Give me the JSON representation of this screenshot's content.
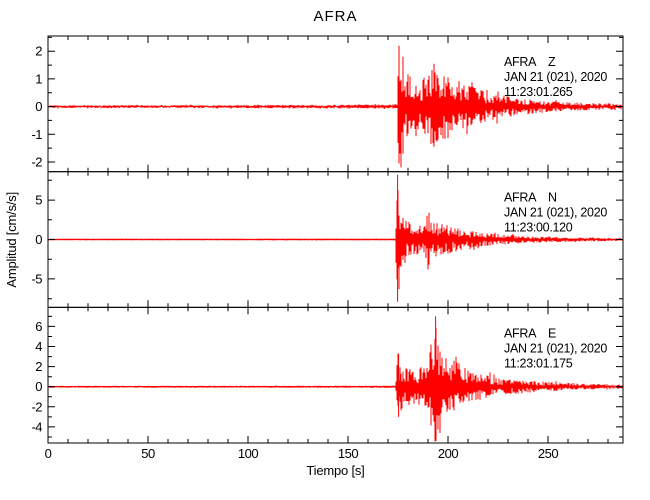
{
  "chart_data": {
    "type": "line",
    "title": "AFRA",
    "xlabel": "Tiempo [s]",
    "ylabel": "Amplitud [cm/s/s]",
    "xlim": [
      0,
      287.5
    ],
    "xticks_major": [
      0,
      50,
      100,
      150,
      200,
      250
    ],
    "xtick_minor_step": 10,
    "grid": false,
    "legend": "none",
    "trace_color": "#ff0000",
    "axis_color": "#000000",
    "background_color": "#ffffff",
    "panels": [
      {
        "station": "AFRA",
        "component": "Z",
        "date_line": "JAN 21 (021), 2020",
        "time_line": "11:23:01.265",
        "ylim": [
          -2.35,
          2.55
        ],
        "yticks_major": [
          -2,
          -1,
          0,
          1,
          2
        ],
        "ytick_minor_step": 0.5,
        "event_onset_s": 175,
        "noise_amplitude": 0.06,
        "envelope": [
          [
            0,
            0.05
          ],
          [
            100,
            0.06
          ],
          [
            160,
            0.07
          ],
          [
            172,
            0.08
          ],
          [
            174.5,
            0.1
          ],
          [
            175.5,
            2.2
          ],
          [
            177,
            1.7
          ],
          [
            179,
            1.25
          ],
          [
            182,
            1.05
          ],
          [
            186,
            0.8
          ],
          [
            189,
            1.2
          ],
          [
            193,
            1.5
          ],
          [
            196,
            1.05
          ],
          [
            199,
            1.3
          ],
          [
            202,
            1.1
          ],
          [
            206,
            0.8
          ],
          [
            210,
            0.85
          ],
          [
            215,
            0.6
          ],
          [
            220,
            0.55
          ],
          [
            226,
            0.45
          ],
          [
            232,
            0.35
          ],
          [
            240,
            0.28
          ],
          [
            250,
            0.2
          ],
          [
            262,
            0.15
          ],
          [
            275,
            0.12
          ],
          [
            287.5,
            0.1
          ]
        ],
        "spikes": [
          [
            175.5,
            2.2,
            -2.05
          ],
          [
            177.5,
            1.8,
            -1.7
          ],
          [
            193,
            1.55,
            -1.45
          ]
        ]
      },
      {
        "station": "AFRA",
        "component": "N",
        "date_line": "JAN 21 (021), 2020",
        "time_line": "11:23:00.120",
        "ylim": [
          -8.6,
          8.6
        ],
        "yticks_major": [
          -5,
          0,
          5
        ],
        "ytick_minor_step": 2.5,
        "event_onset_s": 175,
        "noise_amplitude": 0.04,
        "envelope": [
          [
            0,
            0.04
          ],
          [
            165,
            0.05
          ],
          [
            173.5,
            0.06
          ],
          [
            174.8,
            8.2
          ],
          [
            176,
            5.5
          ],
          [
            177.5,
            2.8
          ],
          [
            180,
            2.3
          ],
          [
            184,
            1.9
          ],
          [
            187,
            2.1
          ],
          [
            190,
            3.4
          ],
          [
            192,
            2.7
          ],
          [
            195,
            2.3
          ],
          [
            198,
            2.0
          ],
          [
            202,
            1.7
          ],
          [
            206,
            1.4
          ],
          [
            210,
            1.15
          ],
          [
            215,
            0.95
          ],
          [
            220,
            0.8
          ],
          [
            226,
            0.65
          ],
          [
            232,
            0.55
          ],
          [
            240,
            0.45
          ],
          [
            250,
            0.35
          ],
          [
            262,
            0.28
          ],
          [
            275,
            0.22
          ],
          [
            287.5,
            0.18
          ]
        ],
        "spikes": [
          [
            174.8,
            8.2,
            -7.9
          ],
          [
            190.5,
            3.4,
            -3.2
          ]
        ]
      },
      {
        "station": "AFRA",
        "component": "E",
        "date_line": "JAN 21 (021), 2020",
        "time_line": "11:23:01.175",
        "ylim": [
          -5.6,
          7.9
        ],
        "yticks_major": [
          -4,
          -2,
          0,
          2,
          4,
          6
        ],
        "ytick_minor_step": 1,
        "event_onset_s": 175,
        "noise_amplitude": 0.04,
        "envelope": [
          [
            0,
            0.04
          ],
          [
            165,
            0.05
          ],
          [
            173.5,
            0.06
          ],
          [
            175,
            3.3
          ],
          [
            177,
            2.4
          ],
          [
            180,
            1.9
          ],
          [
            183,
            1.6
          ],
          [
            187,
            2.0
          ],
          [
            190,
            2.1
          ],
          [
            193.5,
            7.0
          ],
          [
            195,
            4.8
          ],
          [
            197,
            3.0
          ],
          [
            200,
            2.5
          ],
          [
            203,
            2.7
          ],
          [
            207,
            2.1
          ],
          [
            211,
            1.7
          ],
          [
            216,
            1.4
          ],
          [
            221,
            1.1
          ],
          [
            227,
            0.9
          ],
          [
            233,
            0.75
          ],
          [
            240,
            0.6
          ],
          [
            248,
            0.5
          ],
          [
            258,
            0.4
          ],
          [
            270,
            0.3
          ],
          [
            287.5,
            0.22
          ]
        ],
        "spikes": [
          [
            175.3,
            3.3,
            -3.0
          ],
          [
            193.8,
            7.0,
            -5.3
          ],
          [
            196,
            3.5,
            -4.6
          ]
        ]
      }
    ]
  }
}
